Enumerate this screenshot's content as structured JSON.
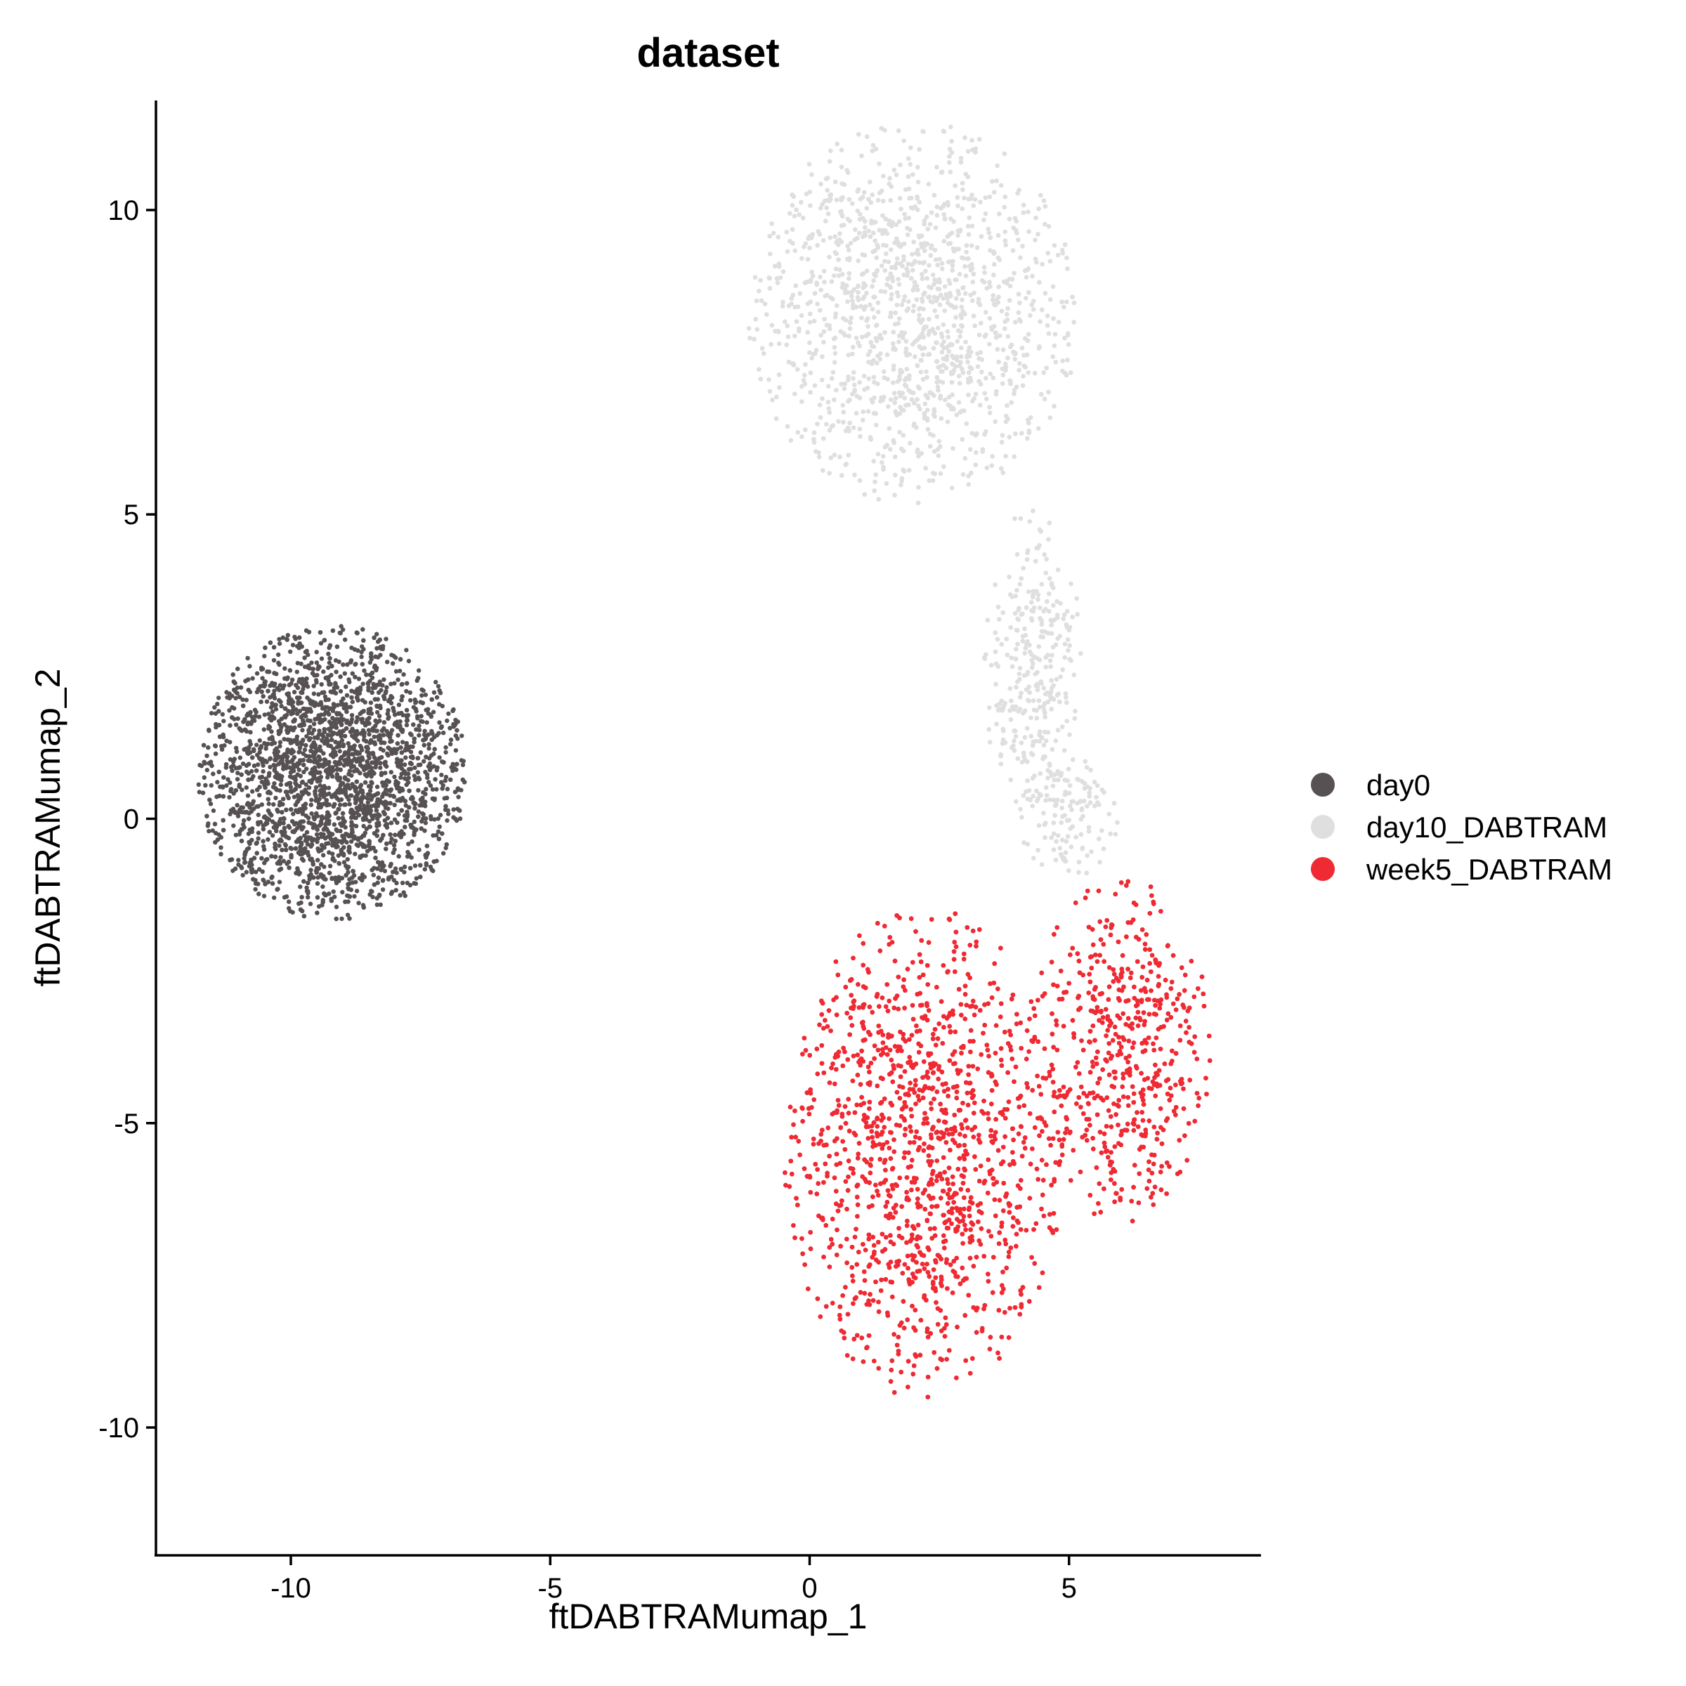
{
  "chart_data": {
    "type": "scatter",
    "title": "dataset",
    "xlabel": "ftDABTRAMumap_1",
    "ylabel": "ftDABTRAMumap_2",
    "xlim": [
      -12.6,
      8.7
    ],
    "ylim": [
      -12.1,
      11.8
    ],
    "x_ticks": [
      -10,
      -5,
      0,
      5
    ],
    "y_ticks": [
      10,
      5,
      0,
      -5,
      -10
    ],
    "x_tick_labels": [
      "-10",
      "-5",
      "0",
      "5"
    ],
    "y_tick_labels": [
      "10",
      "5",
      "0",
      "-5",
      "-10"
    ],
    "grid": false,
    "legend_position": "right",
    "series": [
      {
        "name": "day0",
        "color": "#575154",
        "point_count": 3200,
        "region": {
          "center": [
            -9.2,
            0.75
          ],
          "x_range": [
            -11.7,
            -6.5
          ],
          "y_range": [
            -1.7,
            3.15
          ]
        }
      },
      {
        "name": "day10_DABTRAM",
        "color": "#e0dfdf",
        "point_count": 7200,
        "region": {
          "lobes": [
            {
              "center": [
                2.0,
                8.3
              ],
              "x_range": [
                -1.3,
                5.1
              ],
              "y_range": [
                4.5,
                10.8
              ]
            },
            {
              "center": [
                4.3,
                2.5
              ],
              "x_range": [
                3.5,
                5.4
              ],
              "y_range": [
                -0.3,
                5.0
              ]
            },
            {
              "center": [
                5.0,
                0.0
              ],
              "x_range": [
                3.9,
                5.8
              ],
              "y_range": [
                -1.0,
                1.0
              ]
            }
          ]
        }
      },
      {
        "name": "week5_DABTRAM",
        "color": "#ef2a33",
        "point_count": 12000,
        "region": {
          "lobes": [
            {
              "center": [
                2.2,
                -5.5
              ],
              "x_range": [
                -0.9,
                4.5
              ],
              "y_range": [
                -11.0,
                -2.9
              ]
            },
            {
              "center": [
                6.0,
                -3.8
              ],
              "x_range": [
                4.1,
                7.6
              ],
              "y_range": [
                -6.3,
                -0.6
              ]
            }
          ]
        }
      }
    ]
  }
}
